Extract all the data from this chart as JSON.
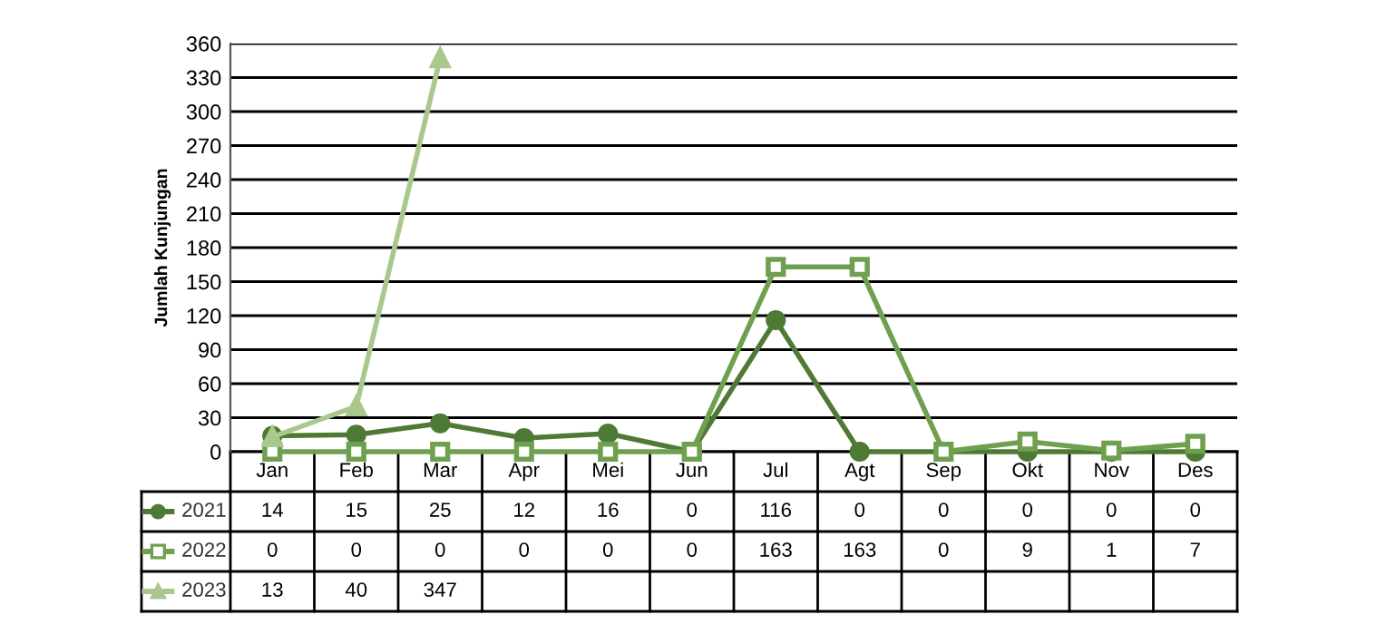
{
  "chart_data": {
    "type": "line",
    "ylabel": "Jumlah Kunjungan",
    "categories": [
      "Jan",
      "Feb",
      "Mar",
      "Apr",
      "Mei",
      "Jun",
      "Jul",
      "Agt",
      "Sep",
      "Okt",
      "Nov",
      "Des"
    ],
    "series": [
      {
        "name": "2021",
        "color": "#4f7a35",
        "marker": "circle",
        "values": [
          14,
          15,
          25,
          12,
          16,
          0,
          116,
          0,
          0,
          0,
          0,
          0
        ]
      },
      {
        "name": "2022",
        "color": "#6fa050",
        "marker": "square",
        "values": [
          0,
          0,
          0,
          0,
          0,
          0,
          163,
          163,
          0,
          9,
          1,
          7
        ]
      },
      {
        "name": "2023",
        "color": "#a9c98c",
        "marker": "triangle",
        "values": [
          13,
          40,
          347,
          null,
          null,
          null,
          null,
          null,
          null,
          null,
          null,
          null
        ]
      }
    ],
    "ylim": [
      0,
      360
    ],
    "yticks": [
      0,
      30,
      60,
      90,
      120,
      150,
      180,
      210,
      240,
      270,
      300,
      330,
      360
    ],
    "grid": "y",
    "data_labels": true,
    "legend": "bottom left",
    "line_style": "solid"
  }
}
